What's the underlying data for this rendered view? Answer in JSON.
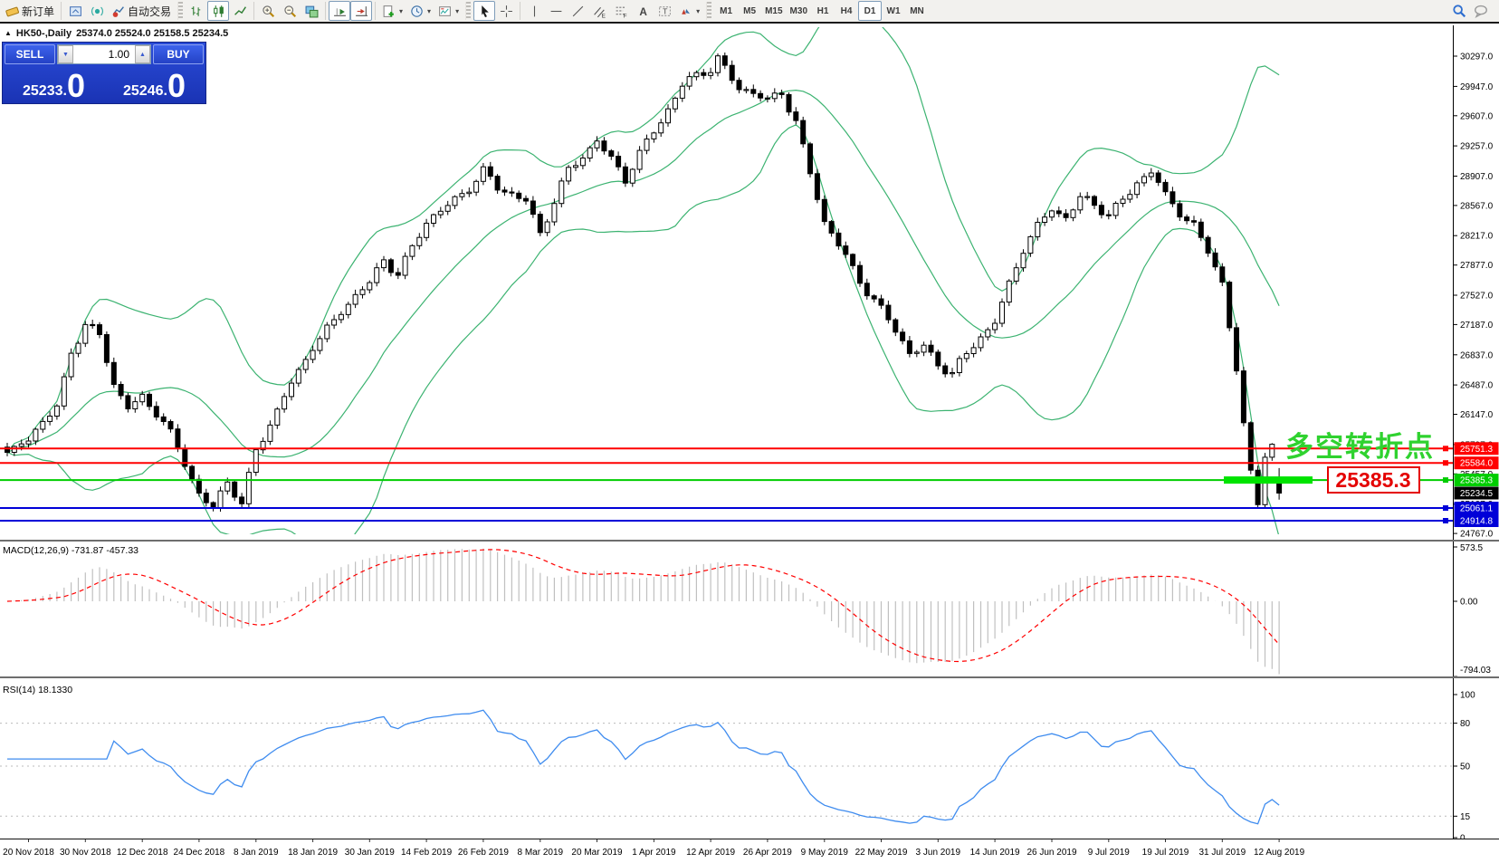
{
  "toolbar": {
    "new_order": "新订单",
    "auto_trade": "自动交易",
    "timeframes": [
      "M1",
      "M5",
      "M15",
      "M30",
      "H1",
      "H4",
      "D1",
      "W1",
      "MN"
    ],
    "active_timeframe": "D1"
  },
  "icons": {
    "collapse": "▲",
    "caret": "▾",
    "volume_down": "▼",
    "volume_up": "▲"
  },
  "chart_header": {
    "symbol_period": "HK50-,Daily",
    "ohlc": "25374.0 25524.0 25158.5 25234.5"
  },
  "trade_panel": {
    "sell_label": "SELL",
    "buy_label": "BUY",
    "volume": "1.00",
    "sell_price_main": "25233",
    "sell_price_big": "0",
    "buy_price_main": "25246",
    "buy_price_big": "0"
  },
  "annotations": {
    "turning_point_text": "多空转折点",
    "price_callout": "25385.3"
  },
  "levels": [
    {
      "price": 25751.3,
      "label": "25751.3",
      "type": "red"
    },
    {
      "price": 25584.0,
      "label": "25584.0",
      "type": "red"
    },
    {
      "price": 25385.3,
      "label": "25385.3",
      "type": "green"
    },
    {
      "price": 25234.5,
      "label": "25234.5",
      "type": "current"
    },
    {
      "price": 25061.1,
      "label": "25061.1",
      "type": "blue"
    },
    {
      "price": 24914.8,
      "label": "24914.8",
      "type": "blue"
    }
  ],
  "axes": {
    "price_ticks": [
      "30297.0",
      "29947.0",
      "29607.0",
      "29257.0",
      "28907.0",
      "28567.0",
      "28217.0",
      "27877.0",
      "27527.0",
      "27187.0",
      "26837.0",
      "26487.0",
      "26147.0",
      "25797.0",
      "25457.0",
      "25107.0",
      "24767.0"
    ],
    "macd_ticks": [
      {
        "v": 573.5,
        "label": "573.5"
      },
      {
        "v": 0,
        "label": "0.00"
      },
      {
        "v": -794.03,
        "label": "-794.03"
      }
    ],
    "rsi_ticks": [
      {
        "v": 100,
        "label": "100"
      },
      {
        "v": 80,
        "label": "80"
      },
      {
        "v": 50,
        "label": "50"
      },
      {
        "v": 15,
        "label": "15"
      },
      {
        "v": 0,
        "label": "0"
      }
    ],
    "rsi_levels": [
      80,
      50,
      15
    ],
    "time_labels": [
      "20 Nov 2018",
      "30 Nov 2018",
      "12 Dec 2018",
      "24 Dec 2018",
      "8 Jan 2019",
      "18 Jan 2019",
      "30 Jan 2019",
      "14 Feb 2019",
      "26 Feb 2019",
      "8 Mar 2019",
      "20 Mar 2019",
      "1 Apr 2019",
      "12 Apr 2019",
      "26 Apr 2019",
      "9 May 2019",
      "22 May 2019",
      "3 Jun 2019",
      "14 Jun 2019",
      "26 Jun 2019",
      "9 Jul 2019",
      "19 Jul 2019",
      "31 Jul 2019",
      "12 Aug 2019"
    ]
  },
  "indicators": {
    "macd_label": "MACD(12,26,9) -731.87 -457.33",
    "rsi_label": "RSI(14) 18.1330"
  },
  "colors": {
    "band_green": "#3cb371",
    "level_red": "#ff0000",
    "level_green": "#00cd00",
    "level_blue": "#0000d8",
    "level_current": "#000000",
    "thick_green": "#00e400",
    "annotation_green": "#2fd22f",
    "callout_red": "#e40000",
    "macd_hist": "#c0c0c0",
    "macd_signal": "#ff0000",
    "rsi_blue": "#3f8cef"
  },
  "chart_data": {
    "type": "candlestick+indicators",
    "instrument": "HK50",
    "period": "Daily",
    "bars": 180,
    "label_every": 8,
    "first_label_bar": 3,
    "last_ohlc": {
      "open": 25374.0,
      "high": 25524.0,
      "low": 25158.5,
      "close": 25234.5
    },
    "bollinger": {
      "period": 20,
      "deviation": 2
    },
    "macd": {
      "fast": 12,
      "slow": 26,
      "signal": 9,
      "main": -731.87,
      "signal_value": -457.33,
      "range": [
        -794.03,
        573.5
      ]
    },
    "rsi": {
      "period": 14,
      "last": 18.133,
      "range": [
        0,
        100
      ]
    },
    "price_axis": {
      "top_tick": 30297.0,
      "bottom_tick": 24767.0,
      "tick_step": 350
    },
    "anchors": [
      [
        0,
        25700
      ],
      [
        3,
        25850
      ],
      [
        5,
        26050
      ],
      [
        7,
        26250
      ],
      [
        9,
        26900
      ],
      [
        11,
        27150
      ],
      [
        13,
        27050
      ],
      [
        15,
        26500
      ],
      [
        17,
        26250
      ],
      [
        19,
        26350
      ],
      [
        21,
        26150
      ],
      [
        23,
        25900
      ],
      [
        25,
        25600
      ],
      [
        27,
        25250
      ],
      [
        29,
        25050
      ],
      [
        31,
        25350
      ],
      [
        33,
        25100
      ],
      [
        35,
        25750
      ],
      [
        37,
        26050
      ],
      [
        39,
        26350
      ],
      [
        41,
        26600
      ],
      [
        43,
        26950
      ],
      [
        47,
        27350
      ],
      [
        51,
        27650
      ],
      [
        53,
        27950
      ],
      [
        55,
        27800
      ],
      [
        59,
        28350
      ],
      [
        63,
        28650
      ],
      [
        67,
        28950
      ],
      [
        69,
        28750
      ],
      [
        73,
        28650
      ],
      [
        75,
        28250
      ],
      [
        79,
        28950
      ],
      [
        83,
        29350
      ],
      [
        85,
        29100
      ],
      [
        87,
        28850
      ],
      [
        91,
        29450
      ],
      [
        95,
        29950
      ],
      [
        99,
        30150
      ],
      [
        100,
        30280
      ],
      [
        103,
        29950
      ],
      [
        107,
        29750
      ],
      [
        109,
        29900
      ],
      [
        111,
        29550
      ],
      [
        113,
        28950
      ],
      [
        115,
        28350
      ],
      [
        119,
        27850
      ],
      [
        123,
        27350
      ],
      [
        127,
        26850
      ],
      [
        129,
        26950
      ],
      [
        131,
        26750
      ],
      [
        133,
        26600
      ],
      [
        137,
        27050
      ],
      [
        139,
        27250
      ],
      [
        143,
        28050
      ],
      [
        147,
        28550
      ],
      [
        149,
        28450
      ],
      [
        151,
        28650
      ],
      [
        155,
        28450
      ],
      [
        159,
        28850
      ],
      [
        161,
        28950
      ],
      [
        163,
        28650
      ],
      [
        167,
        28350
      ],
      [
        169,
        28050
      ],
      [
        171,
        27650
      ],
      [
        173,
        26650
      ],
      [
        174,
        26050
      ],
      [
        175,
        25500
      ],
      [
        176,
        25100
      ],
      [
        177,
        25650
      ],
      [
        178,
        25800
      ],
      [
        179,
        25234.5
      ]
    ]
  }
}
